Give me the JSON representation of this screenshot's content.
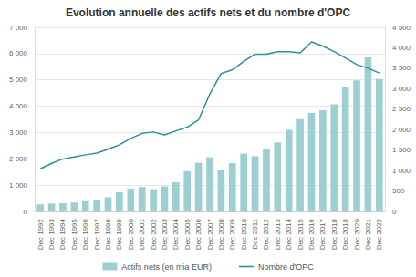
{
  "chart_data": {
    "type": "bar",
    "title": "Evolution annuelle des actifs nets et du nombre d'OPC",
    "categories": [
      "Dec 1992",
      "Dec 1993",
      "Dec 1994",
      "Dec 1995",
      "Dec 1996",
      "Dec 1997",
      "Dec 1998",
      "Dec 1999",
      "Dec 2000",
      "Dec 2001",
      "Dec 2002",
      "Dec 2003",
      "Dec 2004",
      "Dec 2005",
      "Dec 2006",
      "Dec 2007",
      "Dec 2008",
      "Dec 2009",
      "Dec 2010",
      "Dec 2011",
      "Dec 2012",
      "Dec 2013",
      "Dec 2014",
      "Dec 2015",
      "Dec 2016",
      "Dec 2017",
      "Dec 2018",
      "Dec 2019",
      "Dec 2020",
      "Dec 2021",
      "Dec 2022"
    ],
    "series": [
      {
        "name": "Actifs nets (en mia EUR)",
        "type": "bar",
        "color": "#9dcfd2",
        "values": [
          270,
          300,
          310,
          340,
          390,
          450,
          540,
          730,
          870,
          930,
          850,
          950,
          1110,
          1530,
          1850,
          2060,
          1560,
          1840,
          2200,
          2100,
          2380,
          2620,
          3100,
          3510,
          3740,
          3850,
          4070,
          4720,
          4980,
          5860,
          5030
        ]
      },
      {
        "name": "Nombre d'OPC",
        "type": "line",
        "axis": "y2",
        "color": "#2b8fa3",
        "values": [
          1041,
          1175,
          1283,
          1329,
          1384,
          1426,
          1521,
          1630,
          1785,
          1908,
          1941,
          1870,
          1968,
          2060,
          2238,
          2868,
          3371,
          3463,
          3667,
          3845,
          3841,
          3902,
          3905,
          3878,
          4144,
          4044,
          3908,
          3749,
          3589,
          3500,
          3383
        ]
      }
    ],
    "ylim": [
      0,
      7000
    ],
    "yticks": [
      0,
      {
        "value": 1000,
        "label": "1 000"
      },
      {
        "value": 2000,
        "label": "2 000"
      },
      {
        "value": 3000,
        "label": "3 000"
      },
      {
        "value": 4000,
        "label": "4 000"
      },
      {
        "value": 5000,
        "label": "5 000"
      },
      {
        "value": 6000,
        "label": "6 000"
      },
      {
        "value": 7000,
        "label": "7 000"
      }
    ],
    "y2lim": [
      0,
      4500
    ],
    "y2ticks": [
      0,
      500,
      {
        "value": 1000,
        "label": "1 000"
      },
      {
        "value": 1500,
        "label": "1 500"
      },
      {
        "value": 2000,
        "label": "2 000"
      },
      {
        "value": 2500,
        "label": "2 500"
      },
      {
        "value": 3000,
        "label": "3 000"
      },
      {
        "value": 3500,
        "label": "3 500"
      },
      {
        "value": 4000,
        "label": "4 000"
      },
      {
        "value": 4500,
        "label": "4 500"
      }
    ],
    "grid": true,
    "legend": "bottom"
  }
}
